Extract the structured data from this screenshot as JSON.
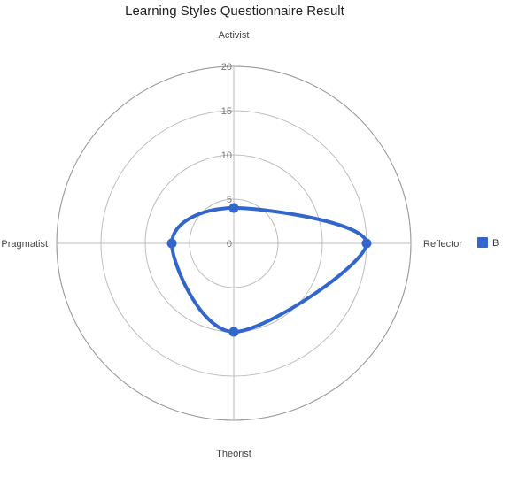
{
  "chart_data": {
    "type": "radar",
    "title": "Learning Styles Questionnaire Result",
    "axes": [
      "Activist",
      "Reflector",
      "Theorist",
      "Pragmatist"
    ],
    "ticks": [
      "0",
      "5",
      "10",
      "15",
      "20"
    ],
    "rlim": [
      0,
      20
    ],
    "grid": true,
    "smooth": true,
    "legend_position": "right",
    "series": [
      {
        "name": "B",
        "color": "#3366cc",
        "values": [
          4,
          15,
          10,
          7
        ]
      }
    ]
  }
}
